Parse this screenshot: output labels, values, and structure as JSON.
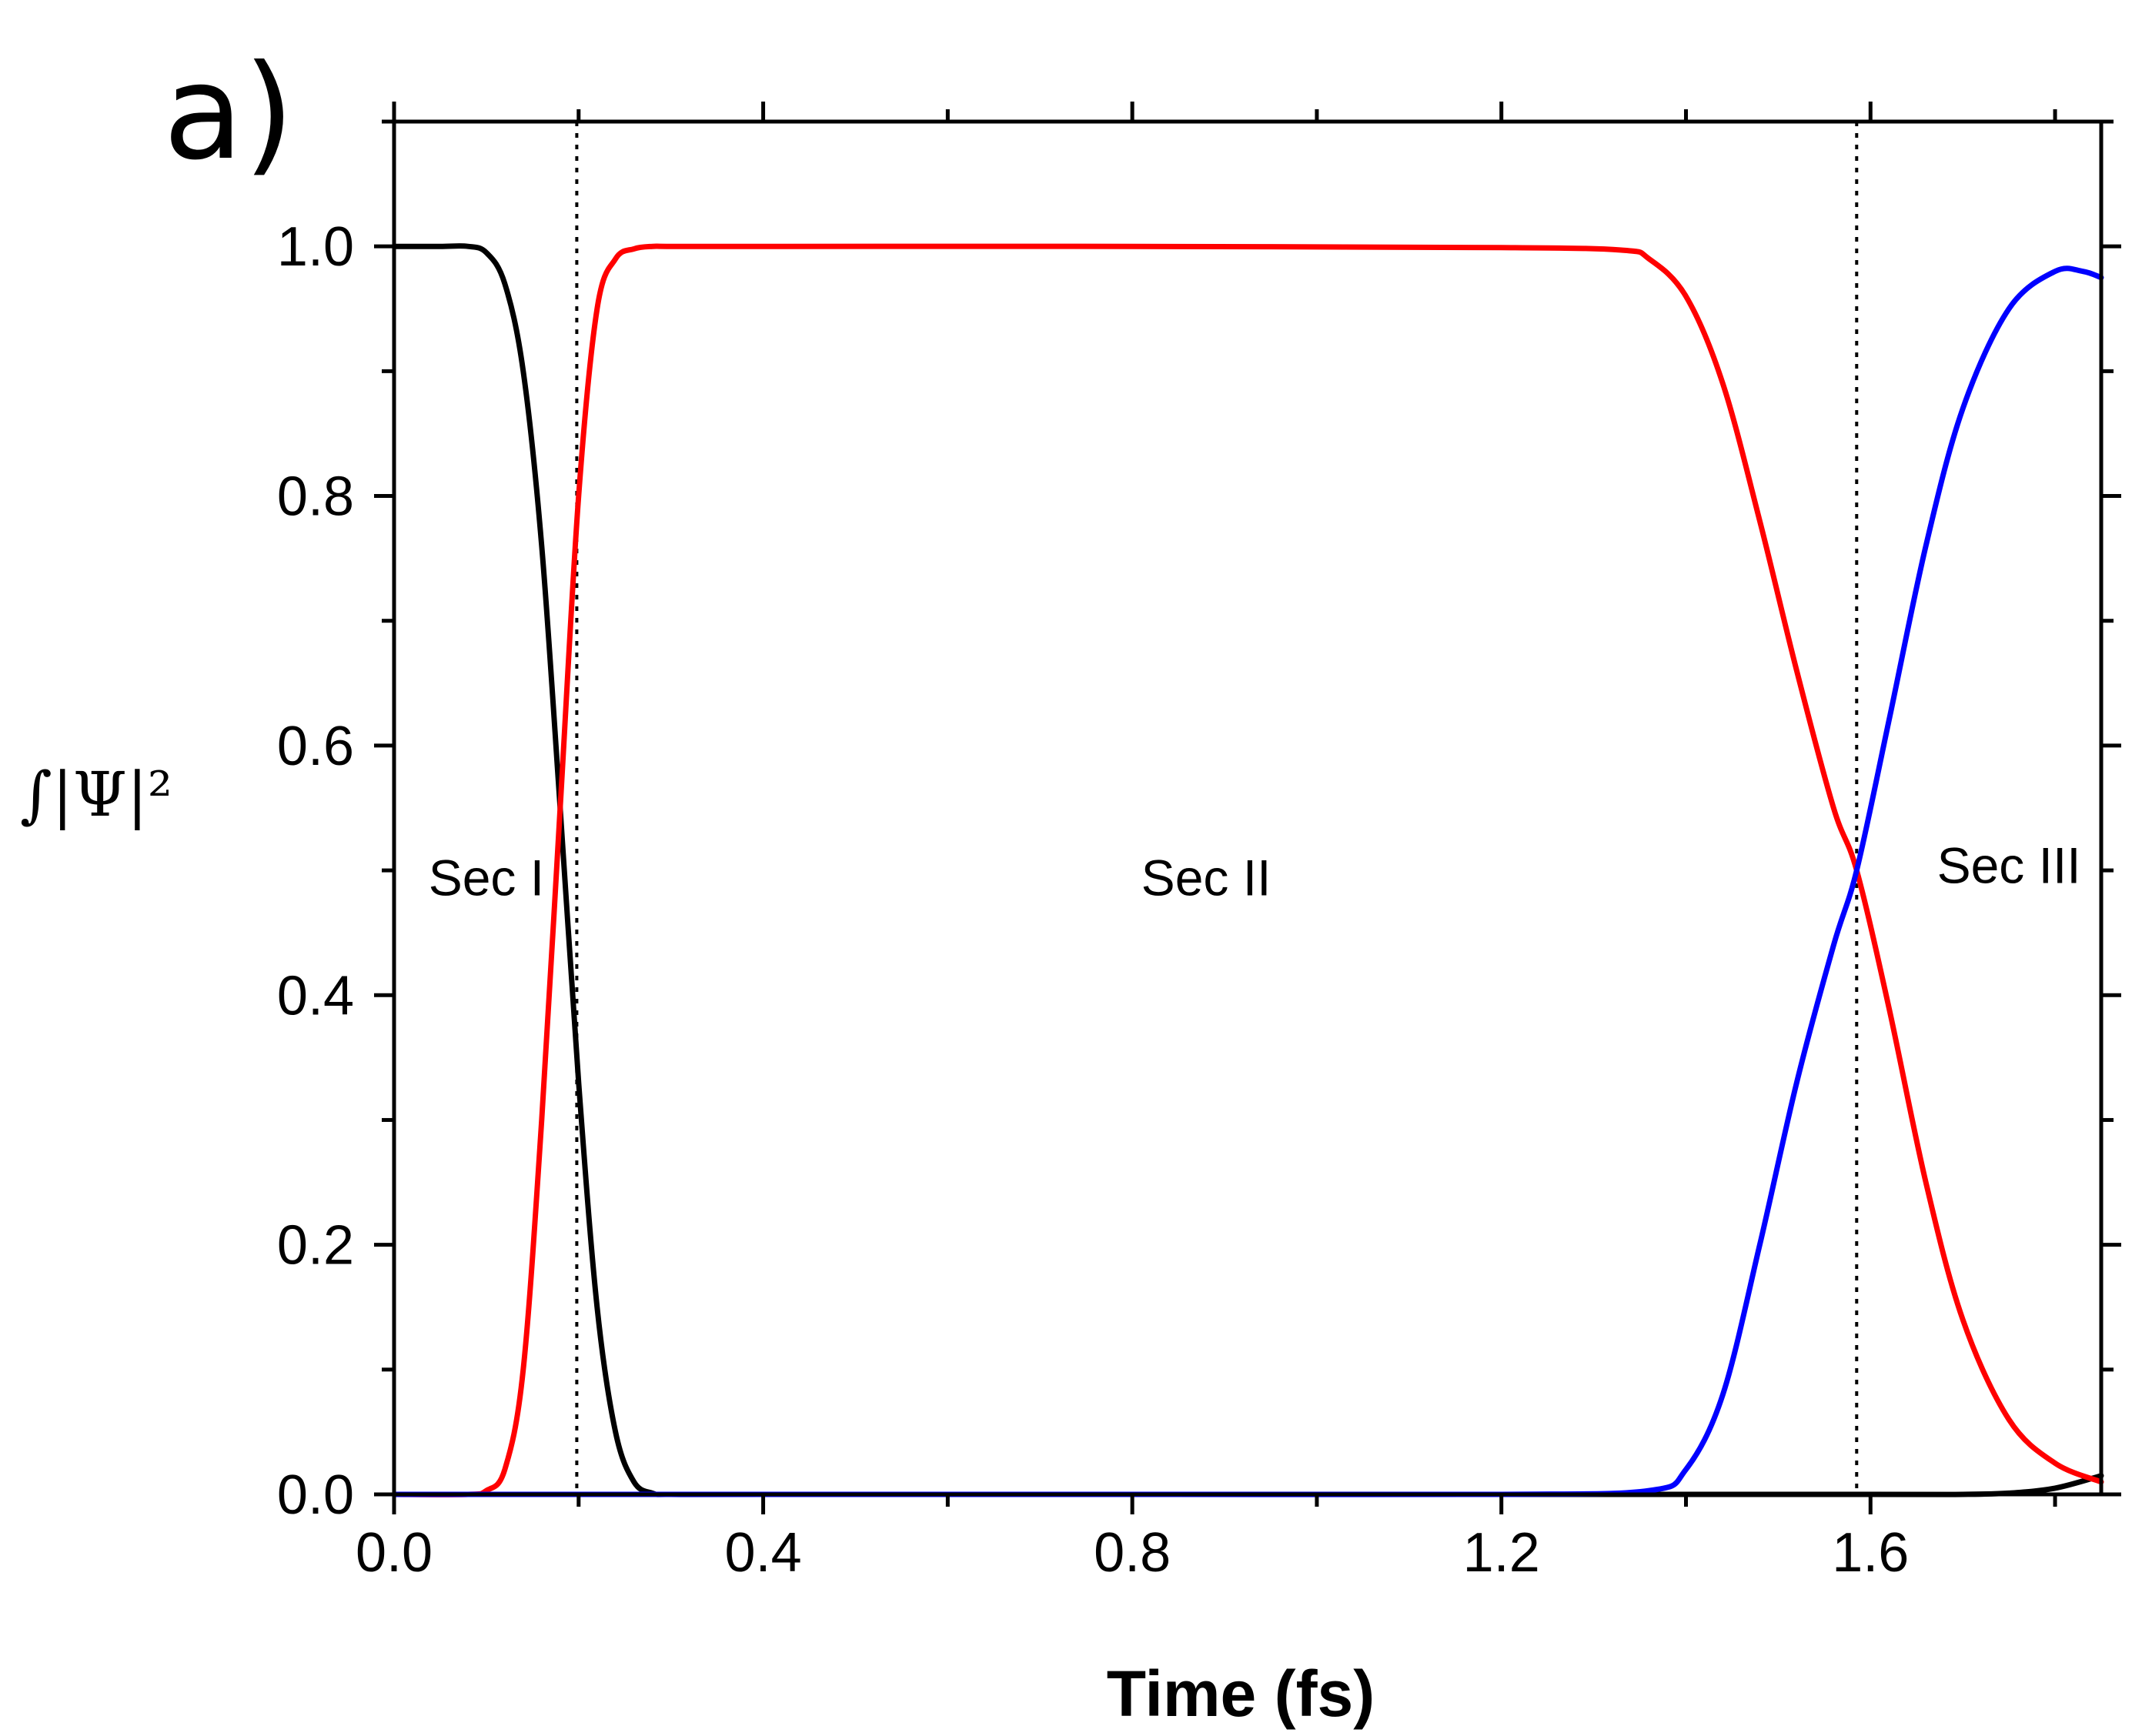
{
  "chart_data": {
    "type": "line",
    "panel_label": "a)",
    "title": "",
    "xlabel": "Time (fs)",
    "ylabel": "∫|Ψ|²",
    "xlim": [
      0.0,
      1.85
    ],
    "ylim": [
      0.0,
      1.1
    ],
    "x_ticks": [
      0.0,
      0.4,
      0.8,
      1.2,
      1.6
    ],
    "x_tick_labels": [
      "0.0",
      "0.4",
      "0.8",
      "1.2",
      "1.6"
    ],
    "y_ticks": [
      0.0,
      0.2,
      0.4,
      0.6,
      0.8,
      1.0
    ],
    "y_tick_labels": [
      "0.0",
      "0.2",
      "0.4",
      "0.6",
      "0.8",
      "1.0"
    ],
    "grid": false,
    "legend": "none",
    "vertical_dotted_lines": [
      0.198,
      1.585
    ],
    "annotations": [
      {
        "text": "Sec I",
        "x": 0.1,
        "y": 0.48
      },
      {
        "text": "Sec II",
        "x": 0.88,
        "y": 0.48
      },
      {
        "text": "Sec III",
        "x": 1.75,
        "y": 0.49
      }
    ],
    "series": [
      {
        "name": "black",
        "color": "#000000",
        "x": [
          0.0,
          0.05,
          0.08,
          0.1,
          0.12,
          0.14,
          0.16,
          0.18,
          0.2,
          0.22,
          0.24,
          0.26,
          0.28,
          0.3,
          0.4,
          0.8,
          1.2,
          1.6,
          1.7,
          1.75,
          1.8,
          1.85
        ],
        "y": [
          1.0,
          1.0,
          1.0,
          0.995,
          0.97,
          0.9,
          0.76,
          0.55,
          0.33,
          0.15,
          0.05,
          0.01,
          0.001,
          0.0,
          0.0,
          0.0,
          0.0,
          0.0,
          0.0,
          0.001,
          0.005,
          0.015
        ]
      },
      {
        "name": "red",
        "color": "#ff0000",
        "x": [
          0.0,
          0.08,
          0.1,
          0.12,
          0.14,
          0.16,
          0.18,
          0.2,
          0.22,
          0.24,
          0.26,
          0.28,
          0.3,
          0.4,
          0.8,
          1.2,
          1.33,
          1.36,
          1.4,
          1.44,
          1.48,
          1.52,
          1.56,
          1.585,
          1.62,
          1.66,
          1.7,
          1.75,
          1.8,
          1.85
        ],
        "y": [
          0.0,
          0.0,
          0.003,
          0.02,
          0.1,
          0.3,
          0.55,
          0.8,
          0.95,
          0.99,
          0.998,
          1.0,
          1.0,
          1.0,
          1.0,
          0.999,
          0.997,
          0.99,
          0.96,
          0.89,
          0.78,
          0.66,
          0.55,
          0.5,
          0.39,
          0.25,
          0.14,
          0.06,
          0.025,
          0.01
        ]
      },
      {
        "name": "blue",
        "color": "#0000ff",
        "x": [
          0.0,
          0.4,
          0.8,
          1.2,
          1.36,
          1.4,
          1.44,
          1.48,
          1.52,
          1.56,
          1.585,
          1.62,
          1.66,
          1.7,
          1.75,
          1.8,
          1.83,
          1.85
        ],
        "y": [
          0.0,
          0.0,
          0.0,
          0.0,
          0.003,
          0.02,
          0.08,
          0.2,
          0.33,
          0.44,
          0.5,
          0.62,
          0.76,
          0.87,
          0.95,
          0.98,
          0.98,
          0.975
        ]
      }
    ]
  }
}
